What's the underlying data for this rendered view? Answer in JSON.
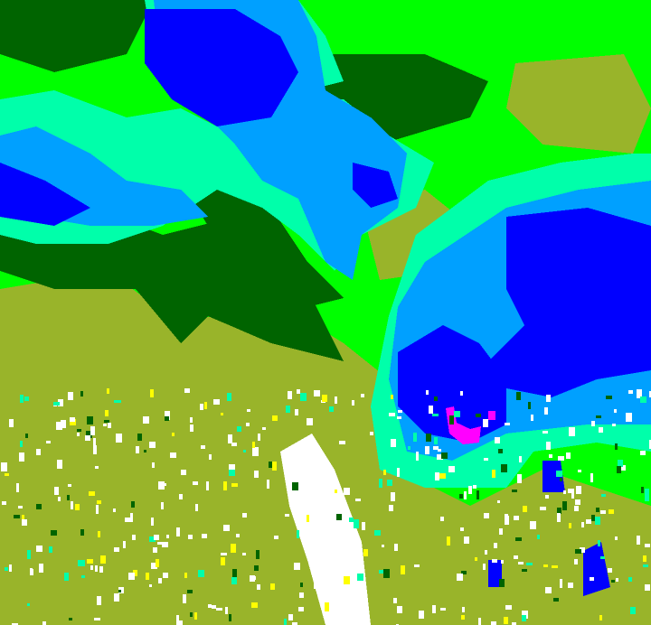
{
  "map": {
    "layer_icon": "radar-reflectivity-icon",
    "palette": {
      "dark_green": "#006400",
      "green": "#00ff00",
      "olive": "#99b42a",
      "aqua": "#00ffaa",
      "light_blue": "#00a0ff",
      "blue": "#0000ff",
      "magenta": "#ff00ff",
      "white": "#ffffff",
      "yellow": "#ffff00"
    }
  }
}
